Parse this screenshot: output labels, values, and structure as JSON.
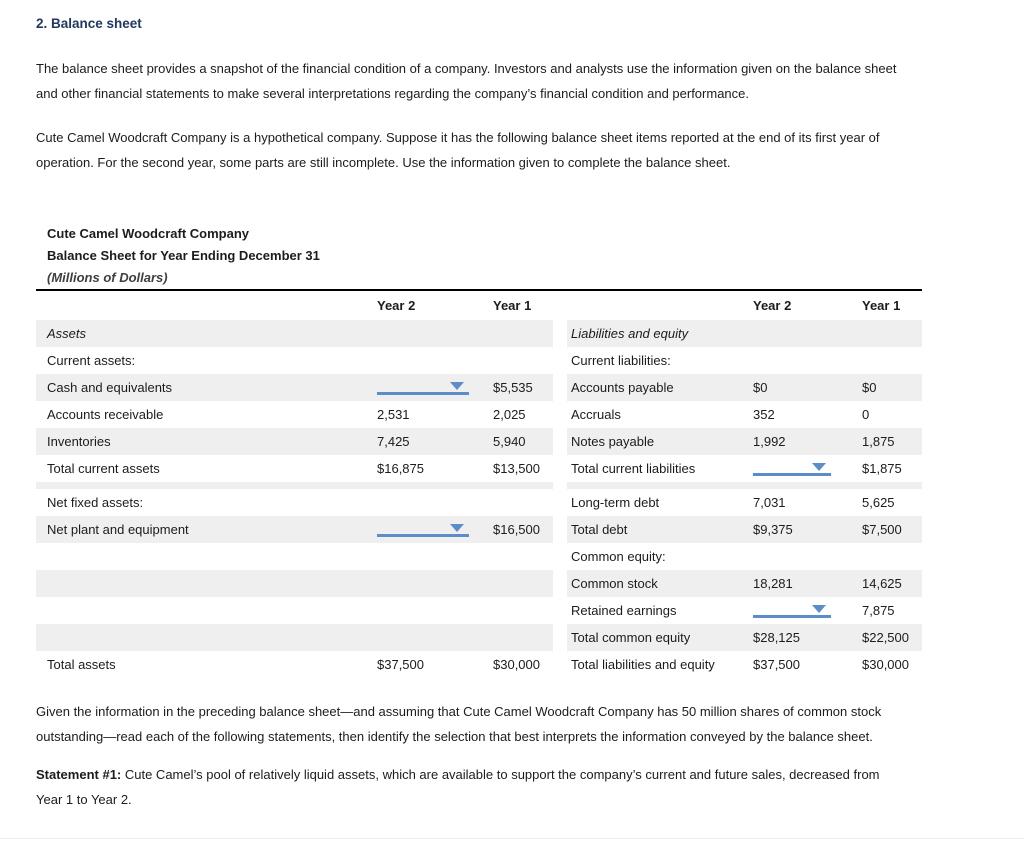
{
  "header": {
    "title": "2. Balance sheet"
  },
  "intro": {
    "p1": "The balance sheet provides a snapshot of the financial condition of a company. Investors and analysts use the information given on the balance sheet\nand other financial statements to make several interpretations regarding the company’s financial condition and performance.",
    "p2": "Cute Camel Woodcraft Company is a hypothetical company. Suppose it has the following balance sheet items reported at the end of its first year of\noperation. For the second year, some parts are still incomplete. Use the information given to complete the balance sheet."
  },
  "sheet": {
    "company": "Cute Camel Woodcraft Company",
    "subtitle": "Balance Sheet for Year Ending December 31",
    "units": "(Millions of Dollars)",
    "year2_header": "Year 2",
    "year1_header": "Year 1",
    "left_rows": [
      {
        "label": "Assets",
        "italic": true,
        "shade": true,
        "y2": "",
        "y1": ""
      },
      {
        "label": "Current assets:",
        "y2": "",
        "y1": ""
      },
      {
        "label": "Cash and equivalents",
        "shade": true,
        "y2_dropdown": true,
        "y1": "$5,535"
      },
      {
        "label": "Accounts receivable",
        "y2": "2,531",
        "y1": "2,025"
      },
      {
        "label": "Inventories",
        "shade": true,
        "y2": "7,425",
        "y1": "5,940"
      },
      {
        "label": "Total current assets",
        "y2": "$16,875",
        "y1": "$13,500"
      },
      {
        "spacer": true
      },
      {
        "label": "Net fixed assets:",
        "y2": "",
        "y1": ""
      },
      {
        "label": "Net plant and equipment",
        "shade": true,
        "y2_dropdown": true,
        "y1": "$16,500"
      },
      {
        "label": "",
        "y2": "",
        "y1": ""
      },
      {
        "label": "",
        "shade": true,
        "y2": "",
        "y1": ""
      },
      {
        "label": "",
        "y2": "",
        "y1": ""
      },
      {
        "label": "",
        "shade": true,
        "y2": "",
        "y1": ""
      },
      {
        "label": "Total assets",
        "y2": "$37,500",
        "y1": "$30,000"
      }
    ],
    "right_rows": [
      {
        "label": "Liabilities and equity",
        "italic": true,
        "shade": true,
        "y2": "",
        "y1": ""
      },
      {
        "label": "Current liabilities:",
        "y2": "",
        "y1": ""
      },
      {
        "label": "Accounts payable",
        "shade": true,
        "y2": "$0",
        "y1": "$0"
      },
      {
        "label": "Accruals",
        "y2": "352",
        "y1": "0"
      },
      {
        "label": "Notes payable",
        "shade": true,
        "y2": "1,992",
        "y1": "1,875"
      },
      {
        "label": "Total current liabilities",
        "y2_dropdown": true,
        "y1": "$1,875"
      },
      {
        "spacer": true
      },
      {
        "label": "Long-term debt",
        "y2": "7,031",
        "y1": "5,625"
      },
      {
        "label": "Total debt",
        "shade": true,
        "y2": "$9,375",
        "y1": "$7,500"
      },
      {
        "label": "Common equity:",
        "y2": "",
        "y1": ""
      },
      {
        "label": "Common stock",
        "shade": true,
        "y2": "18,281",
        "y1": "14,625"
      },
      {
        "label": "Retained earnings",
        "y2_dropdown": true,
        "y1": "7,875"
      },
      {
        "label": "Total common equity",
        "shade": true,
        "y2": "$28,125",
        "y1": "$22,500"
      },
      {
        "label": "Total liabilities and equity",
        "y2": "$37,500",
        "y1": "$30,000"
      }
    ]
  },
  "footer": {
    "p1": "Given the information in the preceding balance sheet—and assuming that Cute Camel Woodcraft Company has 50 million shares of common stock\noutstanding—read each of the following statements, then identify the selection that best interprets the information conveyed by the balance sheet.",
    "statement_label": "Statement #1:",
    "statement_text": " Cute Camel’s pool of relatively liquid assets, which are available to support the company’s current and future sales, decreased from\nYear 1 to Year 2."
  },
  "colors": {
    "title_navy": "#1f3864",
    "row_shade": "#efefef",
    "accent_blue": "#5b8dc9"
  }
}
